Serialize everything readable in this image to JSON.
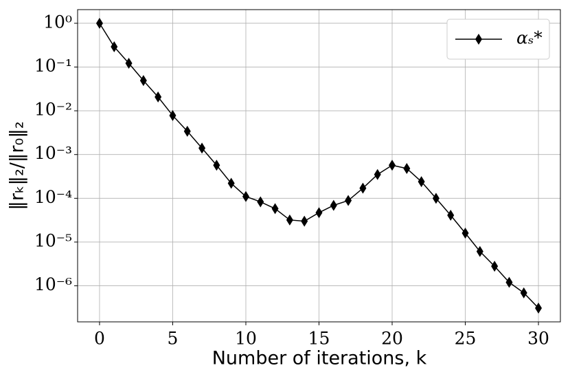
{
  "chart_data": {
    "type": "line",
    "xlabel": "Number of iterations, k",
    "ylabel": "‖rₖ‖₂/‖r₀‖₂",
    "x": [
      0,
      1,
      2,
      3,
      4,
      5,
      6,
      7,
      8,
      9,
      10,
      11,
      12,
      13,
      14,
      15,
      16,
      17,
      18,
      19,
      20,
      21,
      22,
      23,
      24,
      25,
      26,
      27,
      28,
      29,
      30
    ],
    "series": [
      {
        "name": "αₛ*",
        "color": "#000000",
        "values": [
          1,
          0.29,
          0.122,
          0.049,
          0.0207,
          0.0078,
          0.0034,
          0.0014,
          0.00057,
          0.00022,
          0.00011,
          8.3e-05,
          5.8e-05,
          3.2e-05,
          3e-05,
          4.7e-05,
          6.9e-05,
          8.9e-05,
          0.00017,
          0.00035,
          0.00057,
          0.00048,
          0.00024,
          0.0001,
          4.1e-05,
          1.6e-05,
          6.1e-06,
          2.8e-06,
          1.2e-06,
          6.9e-07,
          3.1e-07
        ]
      }
    ],
    "xlim": [
      -1.5,
      31.5
    ],
    "xticks": [
      0,
      5,
      10,
      15,
      20,
      25,
      30
    ],
    "ylim": [
      1.5e-07,
      2.05
    ],
    "log_y": true,
    "yticks": [
      {
        "value": 1,
        "label": "10⁰"
      },
      {
        "value": 0.1,
        "label": "10⁻¹"
      },
      {
        "value": 0.01,
        "label": "10⁻²"
      },
      {
        "value": 0.001,
        "label": "10⁻³"
      },
      {
        "value": 0.0001,
        "label": "10⁻⁴"
      },
      {
        "value": 1e-05,
        "label": "10⁻⁵"
      },
      {
        "value": 1e-06,
        "label": "10⁻⁶"
      }
    ],
    "grid": true,
    "legend": "upper right"
  }
}
